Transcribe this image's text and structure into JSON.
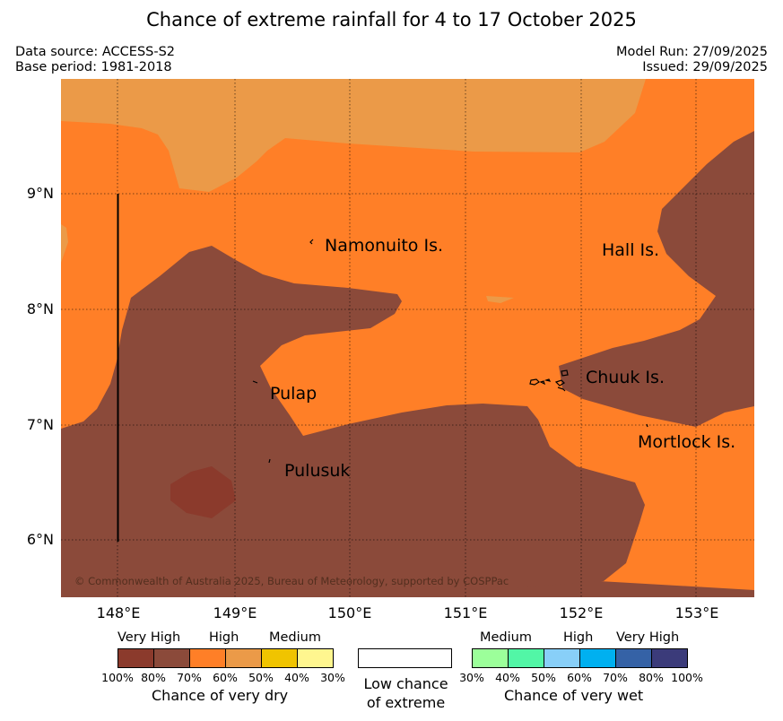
{
  "title": "Chance of extreme rainfall for 4 to 17 October 2025",
  "meta": {
    "data_source": "Data source: ACCESS-S2",
    "base_period": "Base period: 1981-2018",
    "model_run": "Model Run: 27/09/2025",
    "issued": "Issued: 29/09/2025"
  },
  "axes": {
    "lat_ticks": [
      "9°N",
      "8°N",
      "7°N",
      "6°N"
    ],
    "lon_ticks": [
      "148°E",
      "149°E",
      "150°E",
      "151°E",
      "152°E",
      "153°E"
    ]
  },
  "places": {
    "namonuito": "Namonuito Is.",
    "hall": "Hall Is.",
    "pulap": "Pulap",
    "chuuk": "Chuuk Is.",
    "mortlock": "Mortlock Is.",
    "pulusuk": "Pulusuk"
  },
  "copyright": "© Commonwealth of Australia 2025, Bureau of Meteorology, supported by COSPPac",
  "legend": {
    "dry": {
      "headings": [
        "Very High",
        "High",
        "Medium"
      ],
      "ticks": [
        "100%",
        "80%",
        "70%",
        "60%",
        "50%",
        "40%",
        "30%"
      ],
      "colors": [
        "#8B3A2C",
        "#8B4A3A",
        "#FF7F27",
        "#EB9A48",
        "#F0C400",
        "#FFF68F"
      ],
      "label": "Chance of very dry"
    },
    "low": {
      "line1": "Low chance",
      "line2": "of extreme"
    },
    "wet": {
      "headings": [
        "Medium",
        "High",
        "Very High"
      ],
      "ticks": [
        "30%",
        "40%",
        "50%",
        "60%",
        "70%",
        "80%",
        "100%"
      ],
      "colors": [
        "#9CFF9A",
        "#52F6A6",
        "#88CFF8",
        "#00B0F0",
        "#3562A6",
        "#3B3B7A"
      ],
      "label": "Chance of very wet"
    }
  },
  "colors": {
    "orange_high": "#FF7F27",
    "light_orange": "#EB9A48",
    "brown_very_high": "#8B4A3A",
    "dark_brown": "#8B3A2C"
  }
}
